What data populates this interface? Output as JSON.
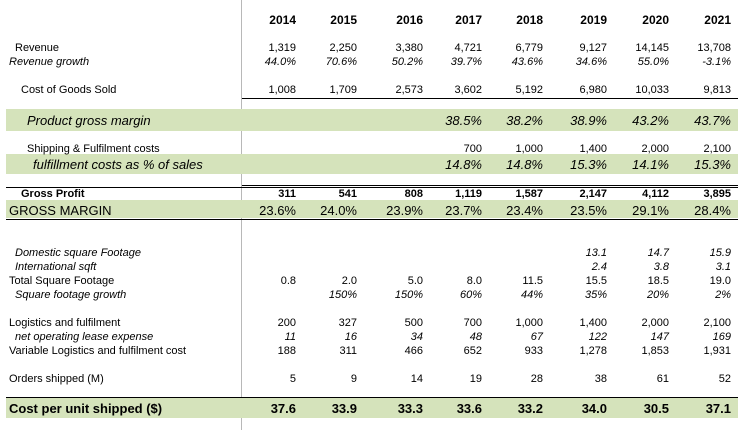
{
  "years": [
    "2014",
    "2015",
    "2016",
    "2017",
    "2018",
    "2019",
    "2020",
    "2021"
  ],
  "rows": [
    {
      "label": "Revenue",
      "values": [
        "1,319",
        "2,250",
        "3,380",
        "4,721",
        "6,779",
        "9,127",
        "14,145",
        "13,708"
      ]
    },
    {
      "label": "Revenue growth",
      "values": [
        "44.0%",
        "70.6%",
        "50.2%",
        "39.7%",
        "43.6%",
        "34.6%",
        "55.0%",
        "-3.1%"
      ]
    },
    {
      "label": "Cost of Goods Sold",
      "values": [
        "1,008",
        "1,709",
        "2,573",
        "3,602",
        "5,192",
        "6,980",
        "10,033",
        "9,813"
      ]
    },
    {
      "label": "Product gross margin",
      "values": [
        "",
        "",
        "",
        "38.5%",
        "38.2%",
        "38.9%",
        "43.2%",
        "43.7%"
      ]
    },
    {
      "label": "Shipping & Fulfilment costs",
      "values": [
        "",
        "",
        "",
        "700",
        "1,000",
        "1,400",
        "2,000",
        "2,100"
      ]
    },
    {
      "label": "fulfillment costs as % of sales",
      "values": [
        "",
        "",
        "",
        "14.8%",
        "14.8%",
        "15.3%",
        "14.1%",
        "15.3%"
      ]
    },
    {
      "label": "Gross Profit",
      "values": [
        "311",
        "541",
        "808",
        "1,119",
        "1,587",
        "2,147",
        "4,112",
        "3,895"
      ]
    },
    {
      "label": "GROSS MARGIN",
      "values": [
        "23.6%",
        "24.0%",
        "23.9%",
        "23.7%",
        "23.4%",
        "23.5%",
        "29.1%",
        "28.4%"
      ]
    },
    {
      "label": "Domestic square Footage",
      "values": [
        "",
        "",
        "",
        "",
        "",
        "13.1",
        "14.7",
        "15.9"
      ]
    },
    {
      "label": "International sqft",
      "values": [
        "",
        "",
        "",
        "",
        "",
        "2.4",
        "3.8",
        "3.1"
      ]
    },
    {
      "label": "Total Square Footage",
      "values": [
        "0.8",
        "2.0",
        "5.0",
        "8.0",
        "11.5",
        "15.5",
        "18.5",
        "19.0"
      ]
    },
    {
      "label": "Square footage growth",
      "values": [
        "",
        "150%",
        "150%",
        "60%",
        "44%",
        "35%",
        "20%",
        "2%"
      ]
    },
    {
      "label": "Logistics and fulfilment",
      "values": [
        "200",
        "327",
        "500",
        "700",
        "1,000",
        "1,400",
        "2,000",
        "2,100"
      ]
    },
    {
      "label": "net operating lease expense",
      "values": [
        "11",
        "16",
        "34",
        "48",
        "67",
        "122",
        "147",
        "169"
      ]
    },
    {
      "label": "Variable Logistics and fulfilment cost",
      "values": [
        "188",
        "311",
        "466",
        "652",
        "933",
        "1,278",
        "1,853",
        "1,931"
      ]
    },
    {
      "label": "Orders shipped (M)",
      "values": [
        "5",
        "9",
        "14",
        "19",
        "28",
        "38",
        "61",
        "52"
      ]
    },
    {
      "label": "Cost per unit shipped ($)",
      "values": [
        "37.6",
        "33.9",
        "33.3",
        "33.6",
        "33.2",
        "34.0",
        "30.5",
        "37.1"
      ]
    }
  ],
  "colors": {
    "band": "#d5e3bb"
  }
}
